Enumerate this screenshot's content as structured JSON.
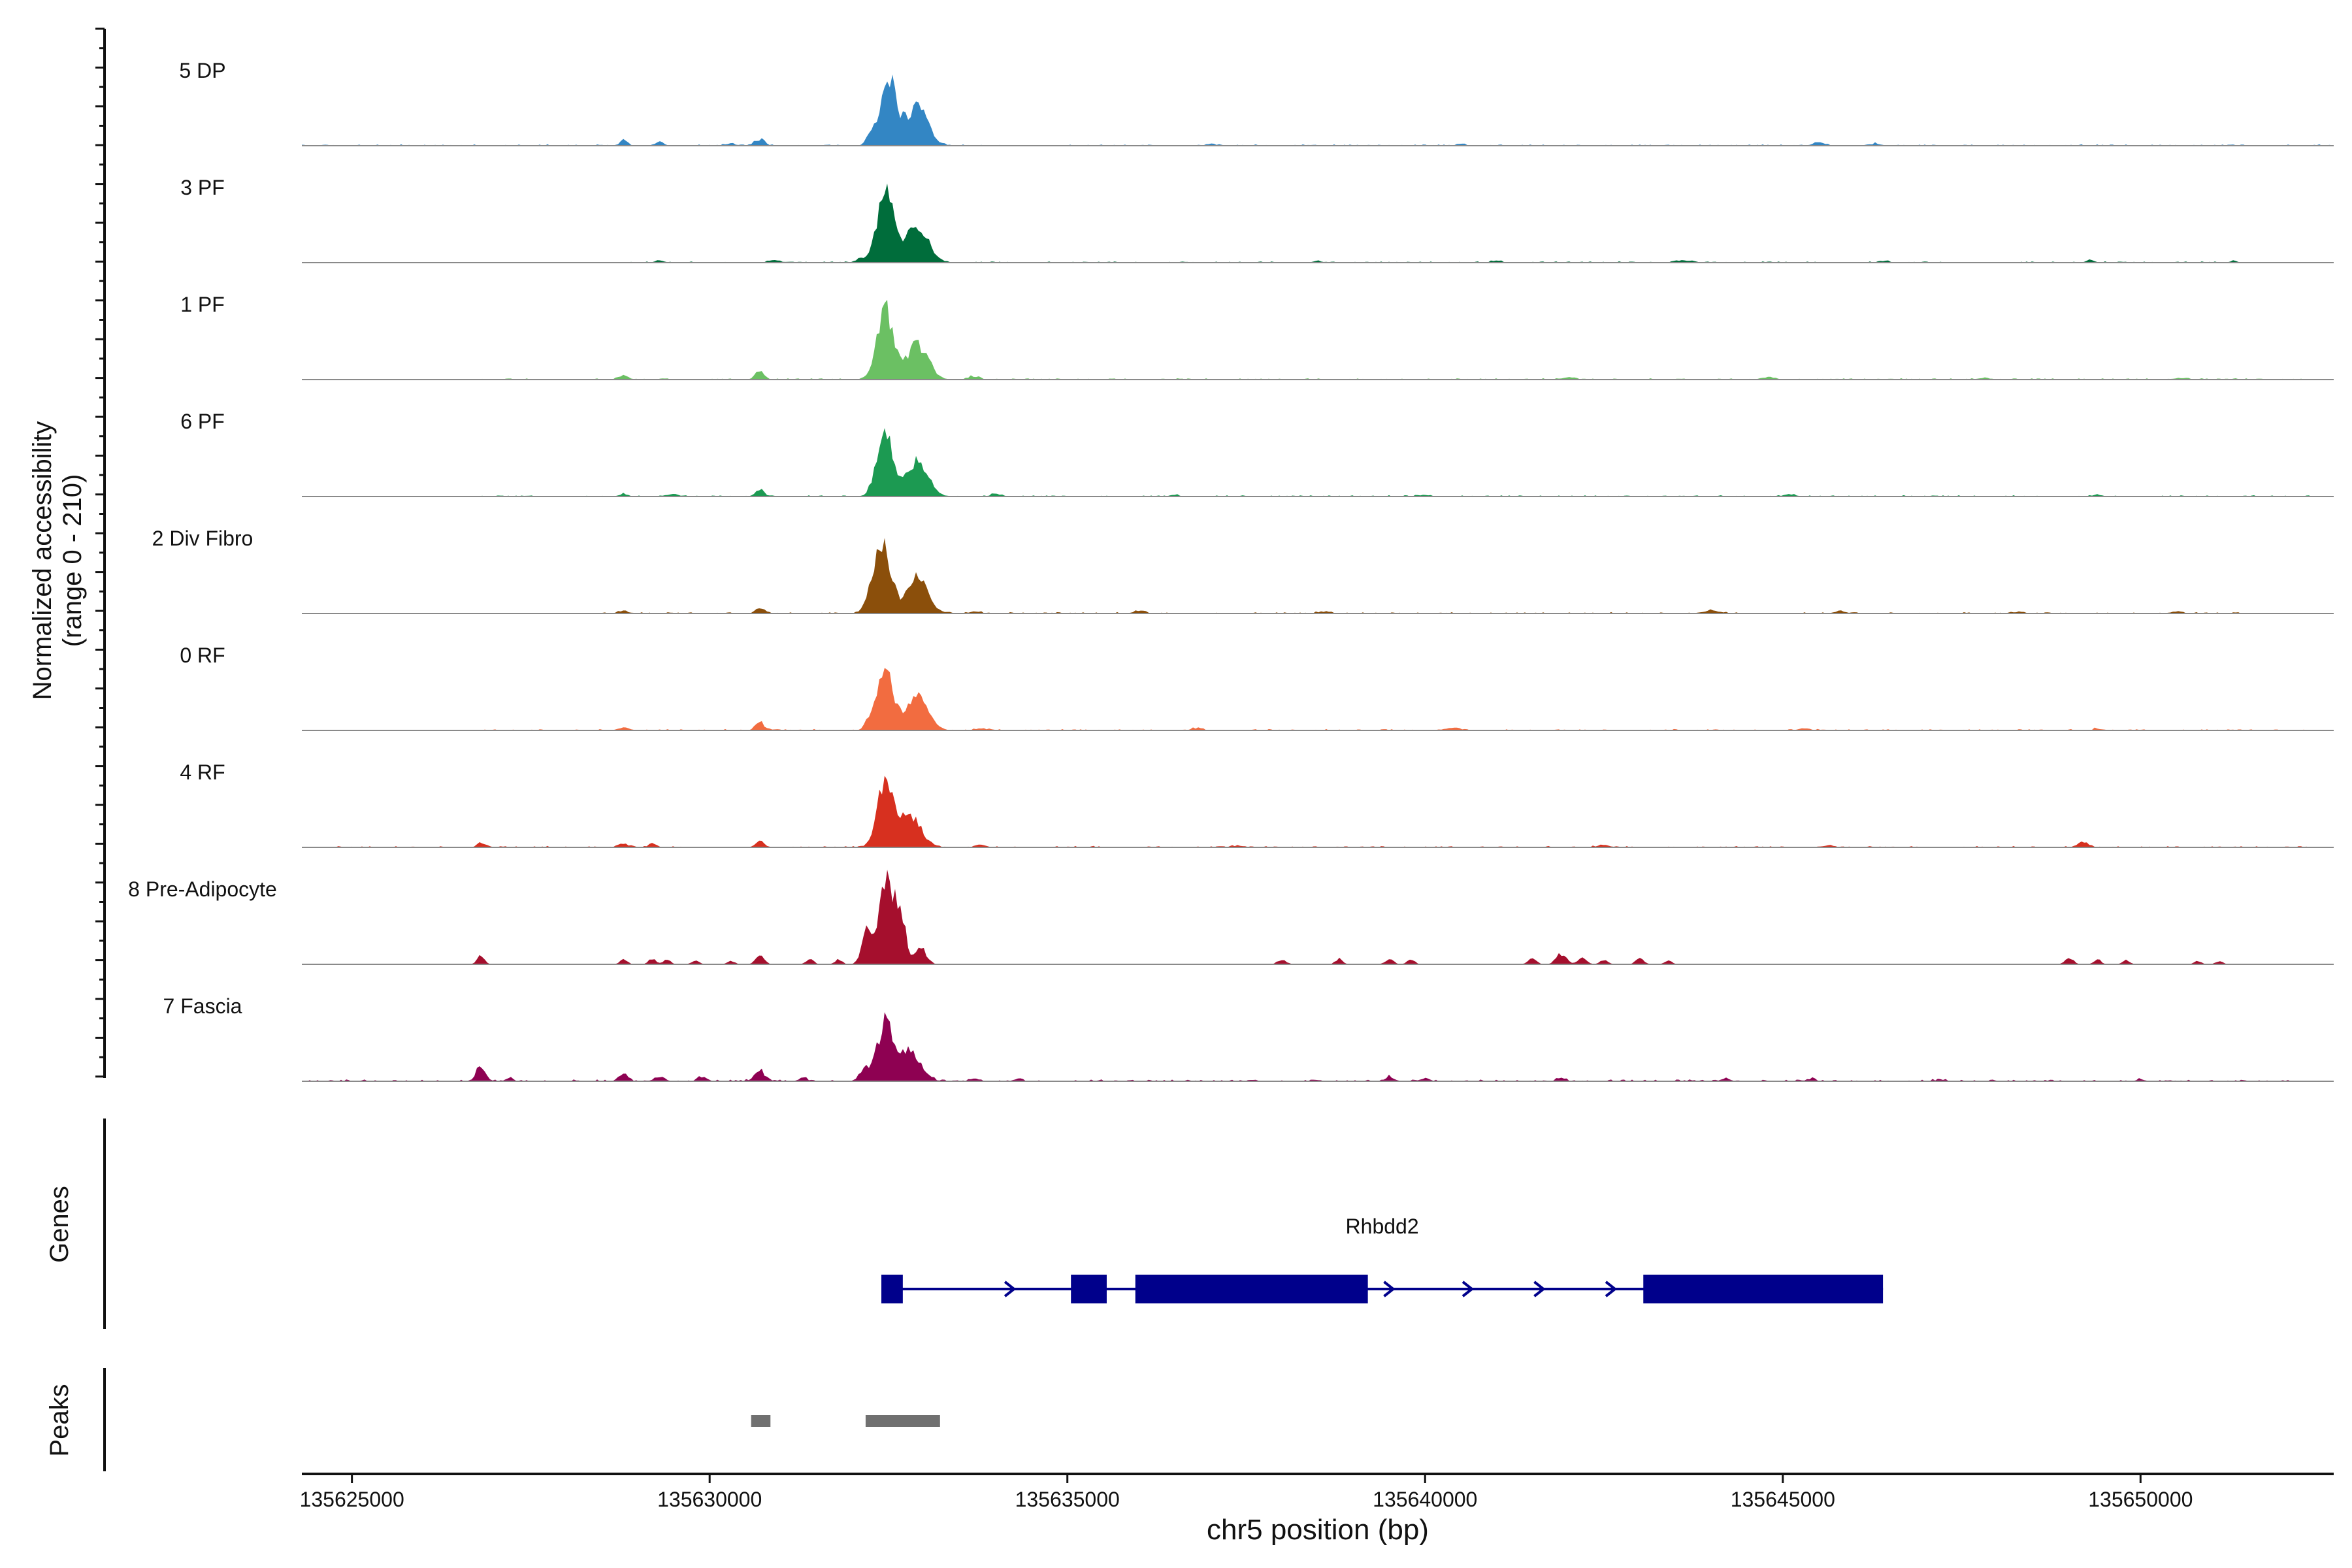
{
  "chart_data": {
    "type": "area",
    "title": "",
    "y_axis_label": "Normalized accessibility",
    "y_axis_range_label": "(range 0 - 210)",
    "ylim": [
      0,
      210
    ],
    "x_axis_label": "chr5 position (bp)",
    "xlim": [
      135624300,
      135652700
    ],
    "x_ticks": [
      135625000,
      135630000,
      135635000,
      135640000,
      135645000,
      135650000
    ],
    "x_tick_labels": [
      "135625000",
      "135630000",
      "135635000",
      "135640000",
      "135645000",
      "135650000"
    ],
    "tracks": [
      {
        "name": "5 DP",
        "color": "#3386c4",
        "peaks": [
          [
            135632500,
            170,
            110
          ],
          [
            135632900,
            95,
            150
          ],
          [
            135632250,
            25,
            60
          ],
          [
            135628800,
            14,
            50
          ],
          [
            135629300,
            8,
            60
          ],
          [
            135630700,
            14,
            70
          ],
          [
            135630300,
            5,
            60
          ],
          [
            135645500,
            9,
            80
          ],
          [
            135646300,
            5,
            60
          ],
          [
            135640500,
            4,
            60
          ],
          [
            135637000,
            4,
            60
          ]
        ],
        "noise": 3,
        "noise_extent": [
          135624300,
          135652700
        ]
      },
      {
        "name": "3 PF",
        "color": "#006d3b",
        "peaks": [
          [
            135632450,
            180,
            110
          ],
          [
            135632900,
            95,
            150
          ],
          [
            135632100,
            10,
            60
          ],
          [
            135630900,
            6,
            80
          ],
          [
            135629300,
            5,
            60
          ],
          [
            135641000,
            5,
            70
          ],
          [
            135643600,
            6,
            90
          ],
          [
            135646400,
            4,
            60
          ],
          [
            135649300,
            6,
            60
          ],
          [
            135651300,
            5,
            50
          ],
          [
            135638500,
            4,
            60
          ]
        ],
        "noise": 3,
        "noise_extent": [
          135628500,
          135651400
        ]
      },
      {
        "name": "1 PF",
        "color": "#6bc063",
        "peaks": [
          [
            135632450,
            170,
            110
          ],
          [
            135632900,
            85,
            150
          ],
          [
            135630700,
            22,
            60
          ],
          [
            135628800,
            10,
            60
          ],
          [
            135642000,
            5,
            90
          ],
          [
            135644800,
            6,
            90
          ],
          [
            135647800,
            4,
            80
          ],
          [
            135650600,
            4,
            70
          ],
          [
            135633700,
            8,
            70
          ]
        ],
        "noise": 3,
        "noise_extent": [
          135626800,
          135652700
        ]
      },
      {
        "name": "6 PF",
        "color": "#1c9a52",
        "peaks": [
          [
            135632450,
            170,
            110
          ],
          [
            135632900,
            90,
            150
          ],
          [
            135630700,
            18,
            60
          ],
          [
            135628800,
            6,
            60
          ],
          [
            135629500,
            6,
            60
          ],
          [
            135634000,
            6,
            70
          ],
          [
            135645100,
            6,
            80
          ],
          [
            135649400,
            5,
            60
          ],
          [
            135640000,
            4,
            70
          ],
          [
            135636500,
            4,
            60
          ]
        ],
        "noise": 3,
        "noise_extent": [
          135626800,
          135652700
        ]
      },
      {
        "name": "2 Div Fibro",
        "color": "#8b4f0b",
        "peaks": [
          [
            135632400,
            180,
            120
          ],
          [
            135632900,
            90,
            150
          ],
          [
            135630700,
            14,
            60
          ],
          [
            135628800,
            6,
            70
          ],
          [
            135636000,
            6,
            80
          ],
          [
            135638600,
            5,
            80
          ],
          [
            135644000,
            7,
            120
          ],
          [
            135645800,
            5,
            80
          ],
          [
            135648300,
            4,
            80
          ],
          [
            135650500,
            4,
            70
          ],
          [
            135633700,
            5,
            70
          ]
        ],
        "noise": 3,
        "noise_extent": [
          135628500,
          135651400
        ]
      },
      {
        "name": "0 RF",
        "color": "#f26c40",
        "peaks": [
          [
            135632450,
            165,
            110
          ],
          [
            135632900,
            85,
            150
          ],
          [
            135630700,
            20,
            60
          ],
          [
            135632200,
            14,
            50
          ],
          [
            135628800,
            8,
            70
          ],
          [
            135640400,
            8,
            80
          ],
          [
            135645300,
            5,
            80
          ],
          [
            135633800,
            5,
            70
          ],
          [
            135636800,
            5,
            70
          ],
          [
            135649400,
            4,
            60
          ]
        ],
        "noise": 3,
        "noise_extent": [
          135626800,
          135652700
        ]
      },
      {
        "name": "4 RF",
        "color": "#d7301f",
        "peaks": [
          [
            135632450,
            150,
            110
          ],
          [
            135632800,
            80,
            150
          ],
          [
            135630700,
            16,
            60
          ],
          [
            135626800,
            12,
            50
          ],
          [
            135628800,
            10,
            60
          ],
          [
            135629200,
            10,
            50
          ],
          [
            135649200,
            14,
            70
          ],
          [
            135642500,
            6,
            80
          ],
          [
            135633800,
            6,
            70
          ],
          [
            135645600,
            4,
            70
          ],
          [
            135637400,
            4,
            70
          ]
        ],
        "noise": 3,
        "noise_extent": [
          135624300,
          135652700
        ]
      },
      {
        "name": "8 Pre-Adipocyte",
        "color": "#a50f2d",
        "peaks": [
          [
            135632450,
            200,
            80
          ],
          [
            135632650,
            150,
            80
          ],
          [
            135632200,
            85,
            70
          ],
          [
            135632950,
            40,
            80
          ],
          [
            135630700,
            22,
            60
          ],
          [
            135631400,
            14,
            50
          ],
          [
            135631800,
            12,
            50
          ],
          [
            135626800,
            22,
            50
          ],
          [
            135628800,
            12,
            50
          ],
          [
            135629200,
            14,
            50
          ],
          [
            135629400,
            12,
            50
          ],
          [
            135629800,
            10,
            50
          ],
          [
            135630300,
            8,
            50
          ],
          [
            135638000,
            12,
            60
          ],
          [
            135638800,
            14,
            50
          ],
          [
            135639500,
            12,
            60
          ],
          [
            135639800,
            14,
            50
          ],
          [
            135641500,
            14,
            60
          ],
          [
            135641900,
            26,
            70
          ],
          [
            135642200,
            16,
            60
          ],
          [
            135642500,
            10,
            60
          ],
          [
            135643000,
            14,
            60
          ],
          [
            135643400,
            10,
            50
          ],
          [
            135649000,
            16,
            60
          ],
          [
            135649400,
            12,
            50
          ],
          [
            135649800,
            10,
            50
          ],
          [
            135650800,
            8,
            50
          ],
          [
            135651100,
            8,
            50
          ]
        ],
        "noise": 0,
        "noise_extent": [
          135624300,
          135652700
        ]
      },
      {
        "name": "7 Fascia",
        "color": "#8e0152",
        "peaks": [
          [
            135632450,
            135,
            110
          ],
          [
            135632800,
            70,
            150
          ],
          [
            135632150,
            30,
            60
          ],
          [
            135630700,
            26,
            70
          ],
          [
            135626800,
            38,
            60
          ],
          [
            135627200,
            8,
            50
          ],
          [
            135628800,
            18,
            60
          ],
          [
            135629300,
            12,
            70
          ],
          [
            135629900,
            10,
            60
          ],
          [
            135631300,
            8,
            60
          ],
          [
            135633700,
            6,
            60
          ],
          [
            135634300,
            6,
            60
          ],
          [
            135639500,
            10,
            60
          ],
          [
            135640000,
            8,
            60
          ],
          [
            135641900,
            8,
            60
          ],
          [
            135644200,
            8,
            60
          ],
          [
            135645400,
            6,
            60
          ],
          [
            135647200,
            5,
            60
          ],
          [
            135650000,
            5,
            60
          ]
        ],
        "noise": 4,
        "noise_extent": [
          135624300,
          135652700
        ]
      }
    ],
    "genes_label": "Genes",
    "gene": {
      "name": "Rhbdd2",
      "strand": "+",
      "start": 135632400,
      "end": 135646400,
      "exons": [
        [
          135632400,
          135632700
        ],
        [
          135635050,
          135635550
        ],
        [
          135635950,
          135639200
        ],
        [
          135643050,
          135646400
        ]
      ],
      "color": "#00008b"
    },
    "peaks_label": "Peaks",
    "peak_regions": [
      [
        135630580,
        135630850
      ],
      [
        135632180,
        135633220
      ]
    ],
    "peak_color": "#707070"
  }
}
